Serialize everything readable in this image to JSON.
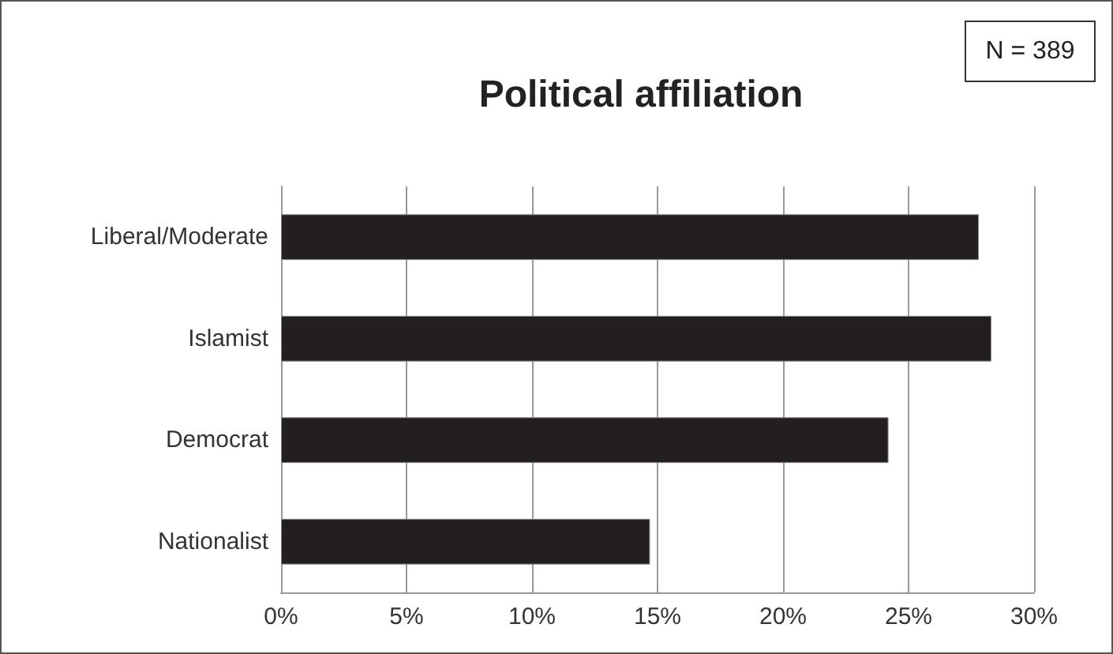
{
  "chart_data": {
    "type": "bar",
    "orientation": "horizontal",
    "title": "Political affiliation",
    "annotations": [
      "N = 389"
    ],
    "categories": [
      "Liberal/Moderate",
      "Islamist",
      "Democrat",
      "Nationalist"
    ],
    "values": [
      27.8,
      28.3,
      24.2,
      14.7
    ],
    "color": "#231f20",
    "xlim": [
      0,
      30
    ],
    "xticks": [
      {
        "value": 0,
        "label": "0%"
      },
      {
        "value": 5,
        "label": "5%"
      },
      {
        "value": 10,
        "label": "10%"
      },
      {
        "value": 15,
        "label": "15%"
      },
      {
        "value": 20,
        "label": "20%"
      },
      {
        "value": 25,
        "label": "25%"
      },
      {
        "value": 30,
        "label": "30%"
      }
    ],
    "grid": "x"
  }
}
